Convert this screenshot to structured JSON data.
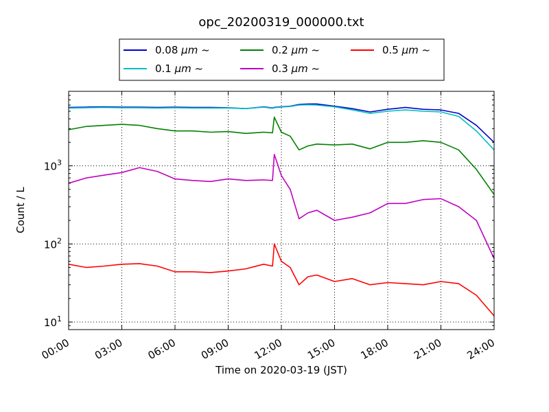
{
  "chart_data": {
    "type": "line",
    "title": "opc_20200319_000000.txt",
    "xlabel": "Time on 2020-03-19 (JST)",
    "ylabel": "Count / L",
    "yscale": "log",
    "ylim": [
      8,
      9000
    ],
    "xlim": [
      "00:00",
      "24:00"
    ],
    "x_ticks": [
      "00:00",
      "03:00",
      "06:00",
      "09:00",
      "12:00",
      "15:00",
      "18:00",
      "21:00",
      "24:00"
    ],
    "y_ticks": [
      {
        "value": 10,
        "base": "10",
        "exp": "1"
      },
      {
        "value": 100,
        "base": "10",
        "exp": "2"
      },
      {
        "value": 1000,
        "base": "10",
        "exp": "3"
      }
    ],
    "grid": true,
    "legend_position": "top-center",
    "x_hours": [
      0,
      1,
      2,
      3,
      4,
      5,
      6,
      7,
      8,
      9,
      10,
      11,
      11.5,
      11.6,
      12,
      12.5,
      13,
      13.5,
      14,
      15,
      16,
      17,
      18,
      19,
      20,
      21,
      22,
      23,
      24
    ],
    "series": [
      {
        "name": "0.08 µm ~",
        "label_main": "0.08 ",
        "label_unit": "µm ~",
        "color": "#0000cc",
        "values": [
          5600,
          5650,
          5700,
          5650,
          5650,
          5600,
          5650,
          5600,
          5600,
          5550,
          5400,
          5700,
          5500,
          5600,
          5700,
          5800,
          6100,
          6200,
          6200,
          5800,
          5400,
          4900,
          5300,
          5600,
          5300,
          5200,
          4700,
          3300,
          2000
        ]
      },
      {
        "name": "0.1 µm ~",
        "label_main": "0.1 ",
        "label_unit": "µm ~",
        "color": "#00bfbf",
        "values": [
          5500,
          5550,
          5600,
          5550,
          5550,
          5500,
          5550,
          5500,
          5500,
          5500,
          5400,
          5650,
          5450,
          5550,
          5650,
          5750,
          6000,
          6050,
          6000,
          5700,
          5200,
          4700,
          5000,
          5200,
          5000,
          4900,
          4300,
          2800,
          1600
        ]
      },
      {
        "name": "0.2 µm ~",
        "label_main": "0.2 ",
        "label_unit": "µm ~",
        "color": "#008000",
        "values": [
          2900,
          3200,
          3300,
          3400,
          3300,
          3000,
          2800,
          2800,
          2700,
          2750,
          2600,
          2700,
          2650,
          4200,
          2700,
          2400,
          1600,
          1800,
          1900,
          1850,
          1900,
          1650,
          2000,
          2000,
          2100,
          2000,
          1600,
          900,
          430
        ]
      },
      {
        "name": "0.3 µm ~",
        "label_main": "0.3 ",
        "label_unit": "µm ~",
        "color": "#bf00bf",
        "values": [
          600,
          700,
          760,
          820,
          950,
          850,
          680,
          650,
          630,
          680,
          650,
          660,
          650,
          1400,
          750,
          500,
          210,
          250,
          270,
          200,
          220,
          250,
          330,
          330,
          370,
          380,
          300,
          200,
          65
        ]
      },
      {
        "name": "0.5 µm ~",
        "label_main": "0.5 ",
        "label_unit": "µm ~",
        "color": "#ff0000",
        "values": [
          55,
          50,
          52,
          55,
          56,
          52,
          44,
          44,
          43,
          45,
          48,
          55,
          52,
          100,
          60,
          50,
          30,
          38,
          40,
          33,
          36,
          30,
          32,
          31,
          30,
          33,
          31,
          22,
          12
        ]
      }
    ]
  }
}
